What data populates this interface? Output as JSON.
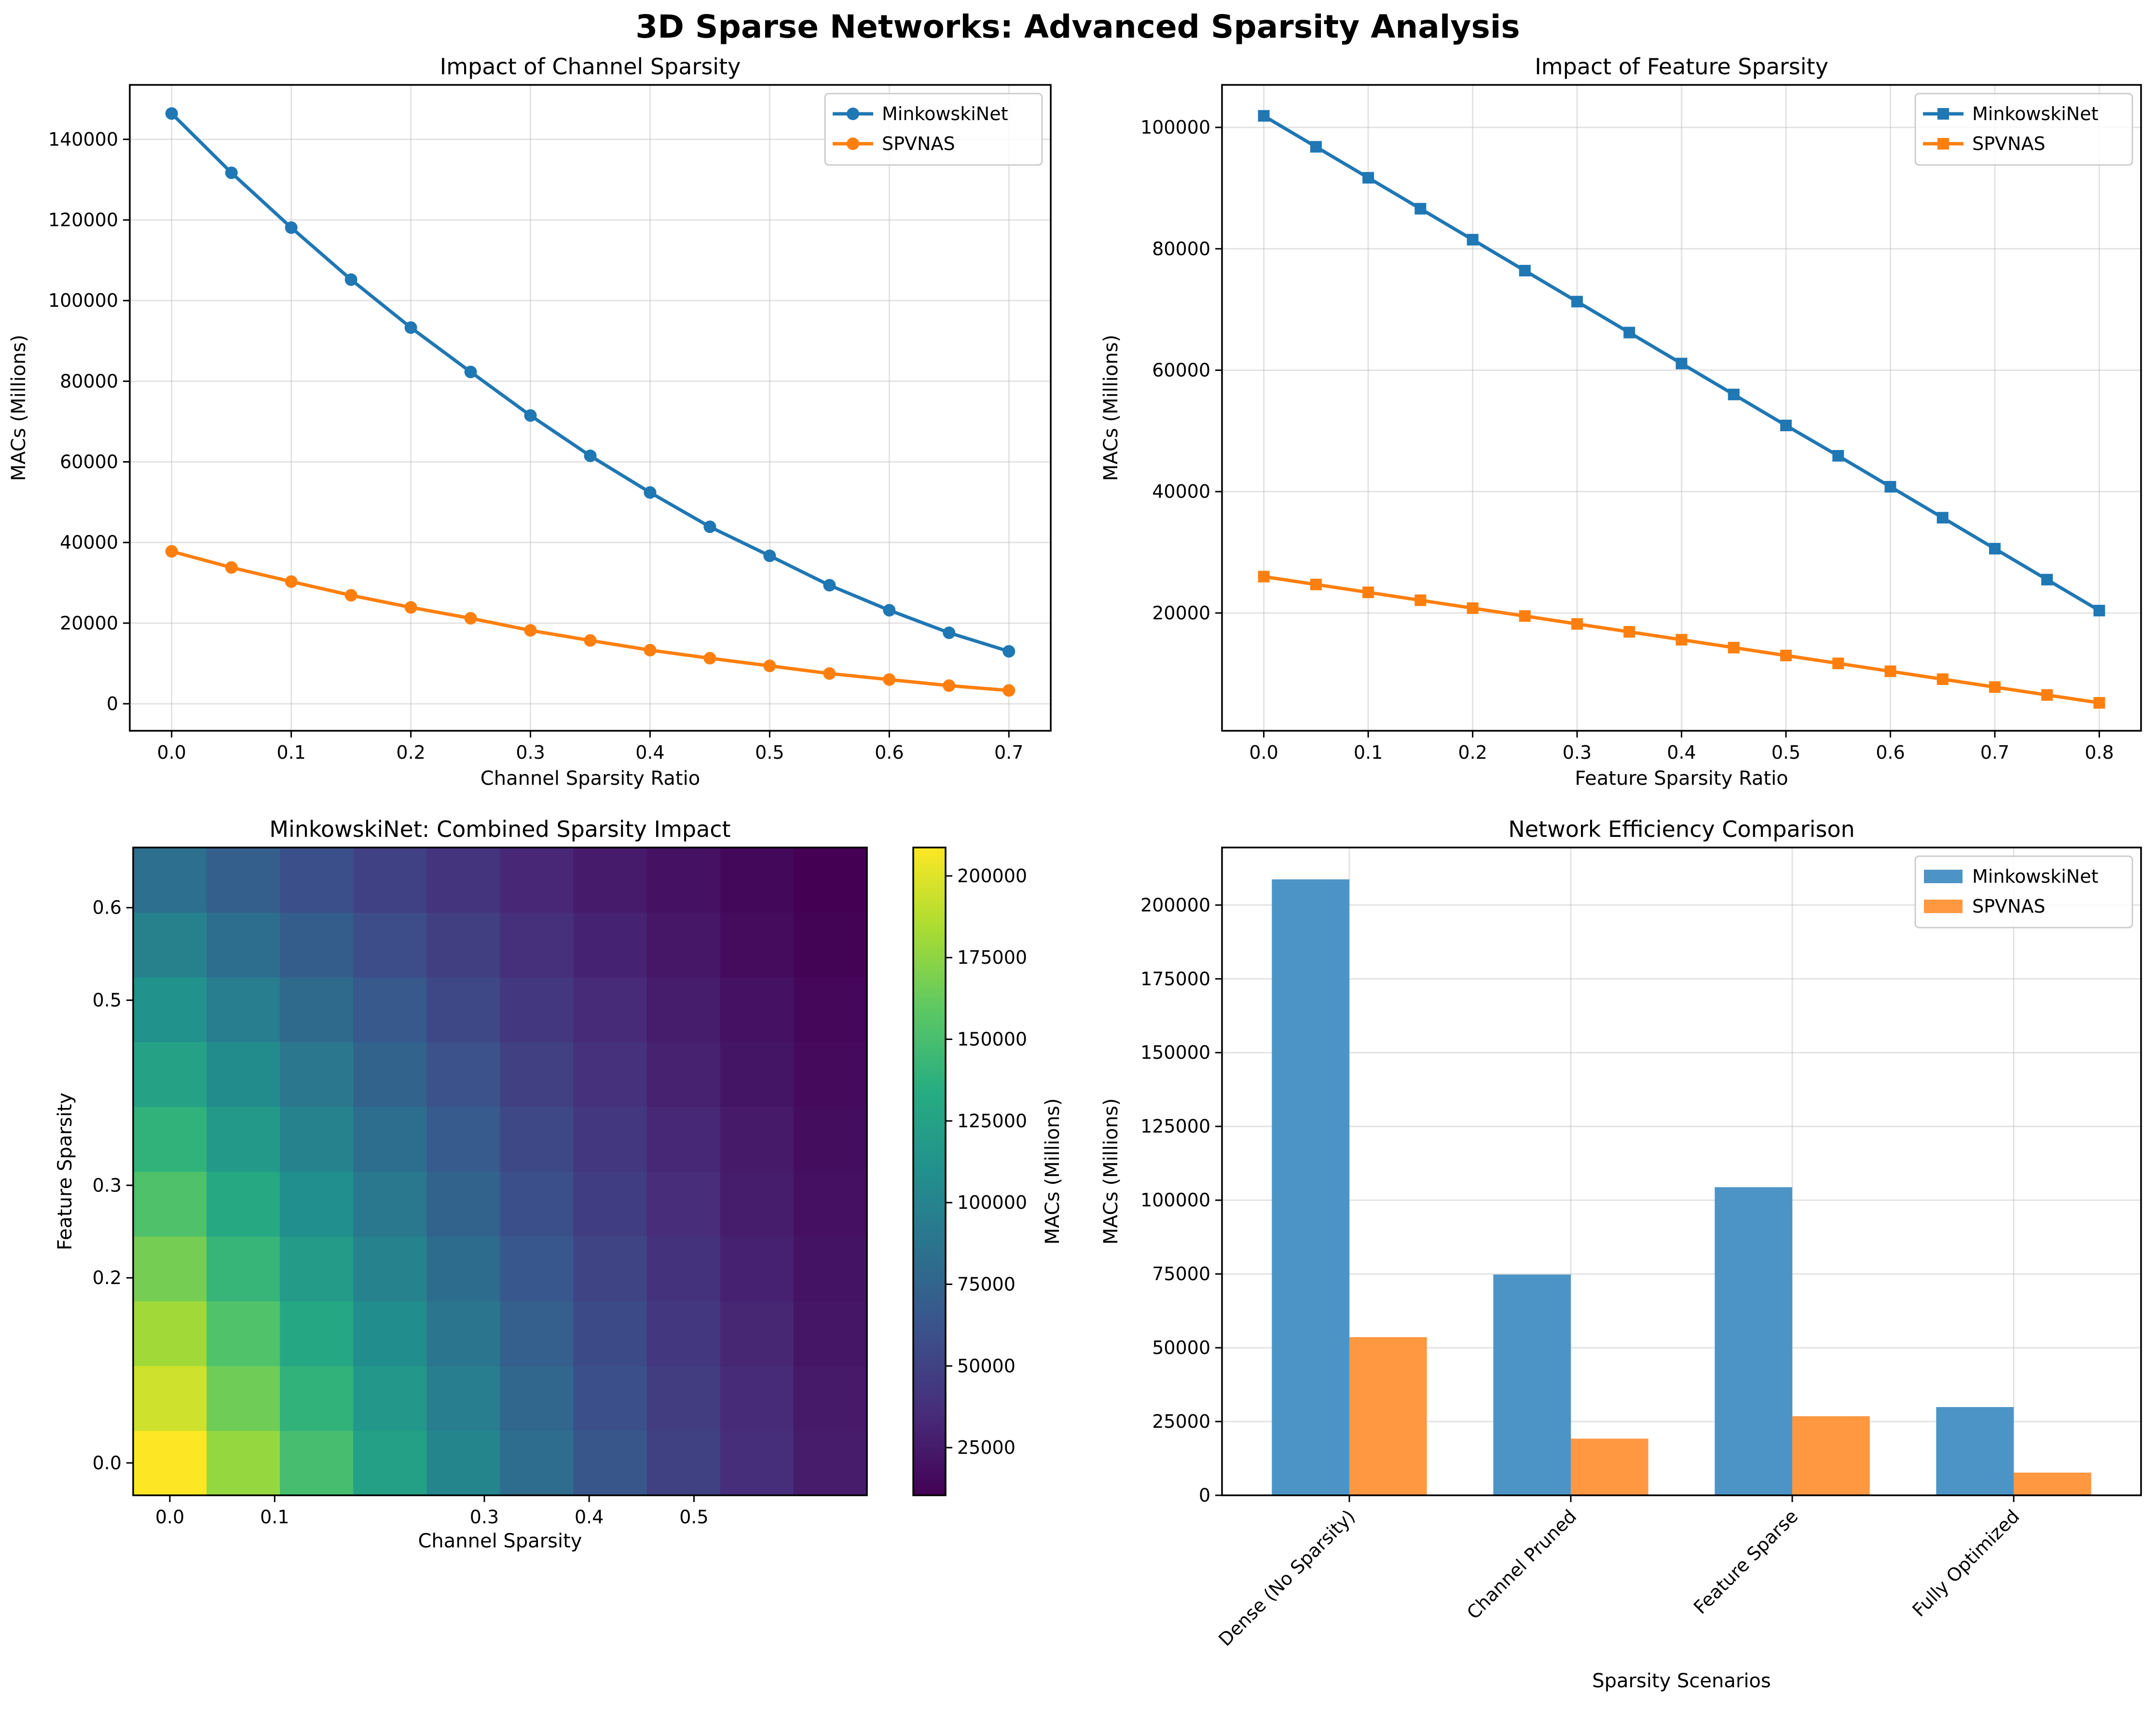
{
  "figure": {
    "title": "3D Sparse Networks: Advanced Sparsity Analysis"
  },
  "chart_data": [
    {
      "type": "line",
      "title": "Impact of Channel Sparsity",
      "xlabel": "Channel Sparsity Ratio",
      "ylabel": "MACs (Millions)",
      "marker": "circle",
      "x": [
        0.0,
        0.05,
        0.1,
        0.15,
        0.2,
        0.25,
        0.3,
        0.35,
        0.4,
        0.45,
        0.5,
        0.55,
        0.6,
        0.65,
        0.7
      ],
      "xticks": [
        "0.0",
        "0.1",
        "0.2",
        "0.3",
        "0.4",
        "0.5",
        "0.6",
        "0.7"
      ],
      "xlim": [
        -0.035,
        0.735
      ],
      "yticks": [
        "0",
        "20000",
        "40000",
        "60000",
        "80000",
        "100000",
        "120000",
        "140000"
      ],
      "ylim": [
        -6700,
        153500
      ],
      "grid": true,
      "legend_position": "top-right",
      "series": [
        {
          "name": "MinkowskiNet",
          "color": "#1f77b4",
          "values": [
            146400,
            131700,
            118100,
            105200,
            93300,
            82300,
            71500,
            61500,
            52400,
            43900,
            36700,
            29400,
            23200,
            17600,
            13000
          ]
        },
        {
          "name": "SPVNAS",
          "color": "#ff7f0e",
          "values": [
            37800,
            33800,
            30300,
            26900,
            23900,
            21200,
            18200,
            15700,
            13300,
            11300,
            9400,
            7500,
            6000,
            4500,
            3300
          ]
        }
      ]
    },
    {
      "type": "line",
      "title": "Impact of Feature Sparsity",
      "xlabel": "Feature Sparsity Ratio",
      "ylabel": "MACs (Millions)",
      "marker": "square",
      "x": [
        0.0,
        0.05,
        0.1,
        0.15,
        0.2,
        0.25,
        0.3,
        0.35,
        0.4,
        0.45,
        0.5,
        0.55,
        0.6,
        0.65,
        0.7,
        0.75,
        0.8
      ],
      "xticks": [
        "0.0",
        "0.1",
        "0.2",
        "0.3",
        "0.4",
        "0.5",
        "0.6",
        "0.7",
        "0.8"
      ],
      "xlim": [
        -0.04,
        0.84
      ],
      "yticks": [
        "20000",
        "40000",
        "60000",
        "80000",
        "100000"
      ],
      "ylim": [
        600,
        107000
      ],
      "grid": true,
      "legend_position": "top-right",
      "series": [
        {
          "name": "MinkowskiNet",
          "color": "#1f77b4",
          "values": [
            101900,
            96800,
            91700,
            86600,
            81500,
            76400,
            71300,
            66200,
            61100,
            56000,
            50900,
            45900,
            40800,
            35700,
            30600,
            25500,
            20400
          ]
        },
        {
          "name": "SPVNAS",
          "color": "#ff7f0e",
          "values": [
            26000,
            24700,
            23400,
            22100,
            20800,
            19500,
            18200,
            16900,
            15600,
            14300,
            13000,
            11700,
            10400,
            9100,
            7800,
            6500,
            5200
          ]
        }
      ]
    },
    {
      "type": "heatmap",
      "title": "MinkowskiNet: Combined Sparsity Impact",
      "xlabel": "Channel Sparsity",
      "ylabel": "Feature Sparsity",
      "colorbar_label": "MACs (Millions)",
      "colormap": "viridis",
      "vmin": 10400,
      "vmax": 208700,
      "x_values": [
        0.0,
        0.07,
        0.13,
        0.2,
        0.27,
        0.33,
        0.4,
        0.47,
        0.53,
        0.6
      ],
      "y_values": [
        0.0,
        0.07,
        0.13,
        0.2,
        0.27,
        0.33,
        0.4,
        0.47,
        0.53,
        0.6
      ],
      "xticks": [
        "0.0",
        "0.1",
        "0.3",
        "0.4",
        "0.5"
      ],
      "yticks": [
        "0.0",
        "0.2",
        "0.3",
        "0.5",
        "0.6"
      ],
      "colorbar_ticks": [
        "25000",
        "50000",
        "75000",
        "100000",
        "125000",
        "150000",
        "175000",
        "200000"
      ],
      "values": [
        [
          208700,
          177100,
          148800,
          123500,
          101000,
          81300,
          63900,
          49000,
          36300,
          25700
        ],
        [
          194800,
          165300,
          138900,
          115300,
          94300,
          75900,
          59600,
          45700,
          33900,
          24000
        ],
        [
          180900,
          153500,
          129000,
          107100,
          87600,
          70500,
          55400,
          42500,
          31500,
          22300
        ],
        [
          167000,
          141700,
          119000,
          98800,
          80800,
          65000,
          51100,
          39200,
          29100,
          20600
        ],
        [
          153000,
          129900,
          109100,
          90600,
          74100,
          59600,
          46900,
          35900,
          26600,
          18800
        ],
        [
          139100,
          118100,
          99200,
          82300,
          67400,
          54200,
          42600,
          32700,
          24200,
          17100
        ],
        [
          125200,
          106300,
          89300,
          74100,
          60600,
          48800,
          38400,
          29400,
          21800,
          15400
        ],
        [
          111300,
          94500,
          79400,
          65900,
          53900,
          43400,
          34100,
          26100,
          19400,
          13700
        ],
        [
          97400,
          82600,
          69400,
          57600,
          47100,
          37900,
          29800,
          22900,
          16900,
          12000
        ],
        [
          83500,
          70800,
          59500,
          49400,
          40400,
          32500,
          25600,
          19600,
          14500,
          10400
        ]
      ]
    },
    {
      "type": "bar",
      "title": "Network Efficiency Comparison",
      "xlabel": "Sparsity Scenarios",
      "ylabel": "MACs (Millions)",
      "categories": [
        "Dense (No Sparsity)",
        "Channel Pruned",
        "Feature Sparse",
        "Fully Optimized"
      ],
      "yticks": [
        "0",
        "25000",
        "50000",
        "75000",
        "100000",
        "125000",
        "150000",
        "175000",
        "200000"
      ],
      "ylim": [
        0,
        219500
      ],
      "grid": true,
      "legend_position": "top-right",
      "series": [
        {
          "name": "MinkowskiNet",
          "color": "#4c94c6",
          "values": [
            208700,
            74800,
            104400,
            29900
          ]
        },
        {
          "name": "SPVNAS",
          "color": "#ff9840",
          "values": [
            53600,
            19200,
            26800,
            7700
          ]
        }
      ]
    }
  ]
}
